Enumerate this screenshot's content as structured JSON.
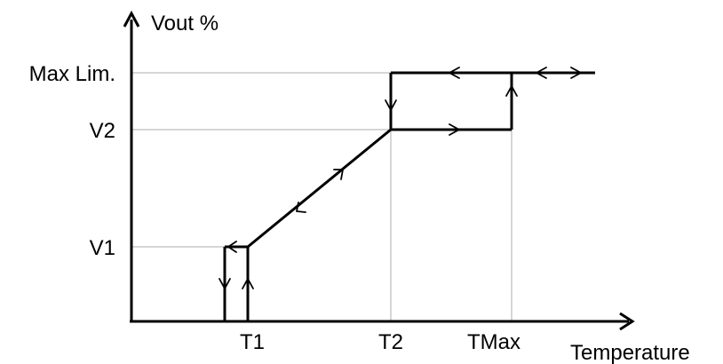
{
  "diagram": {
    "y_axis_label": "Vout %",
    "x_axis_label": "Temperature",
    "y_levels": [
      "Max Lim.",
      "V2",
      "V1"
    ],
    "x_ticks": [
      "T1",
      "T2",
      "TMax"
    ],
    "colors": {
      "line": "#000000",
      "guide": "#c8c8c8",
      "background": "#ffffff"
    }
  }
}
